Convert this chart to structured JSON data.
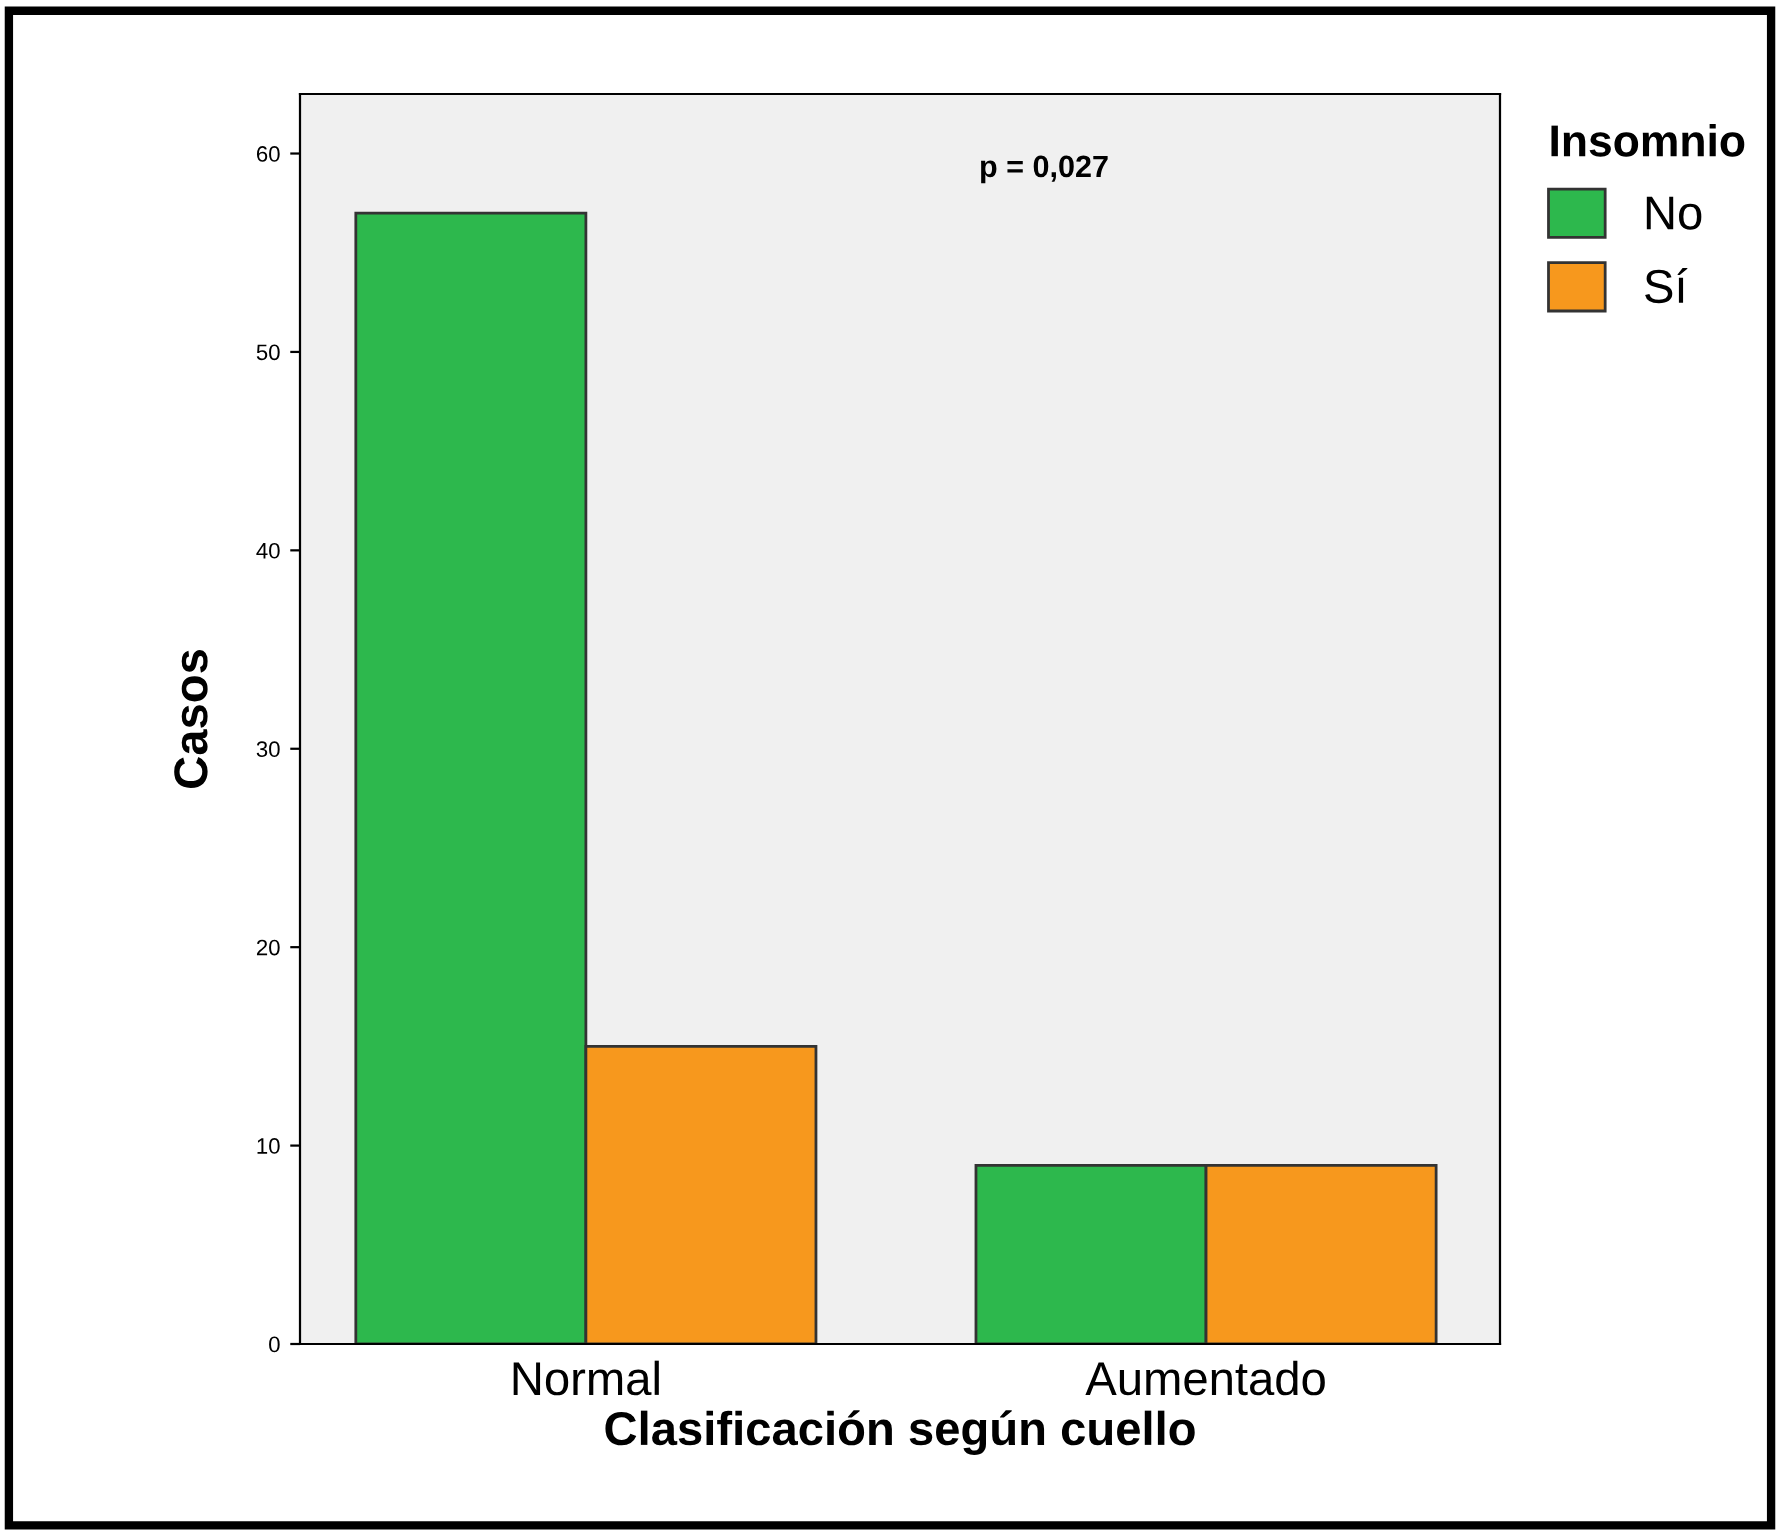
{
  "chart_data": {
    "type": "bar",
    "xlabel": "Clasificación según cuello",
    "ylabel": "Casos",
    "categories": [
      "Normal",
      "Aumentado"
    ],
    "series": [
      {
        "name": "No",
        "color": "#2db84d",
        "values": [
          57,
          9
        ]
      },
      {
        "name": "Sí",
        "color": "#f7981d",
        "values": [
          15,
          9
        ]
      }
    ],
    "legend_title": "Insomnio",
    "legend": "top right",
    "ylim": [
      0,
      63
    ],
    "yticks": [
      0,
      10,
      20,
      30,
      40,
      50,
      60
    ],
    "grid": false,
    "annotations": [
      "p = 0,027"
    ]
  }
}
